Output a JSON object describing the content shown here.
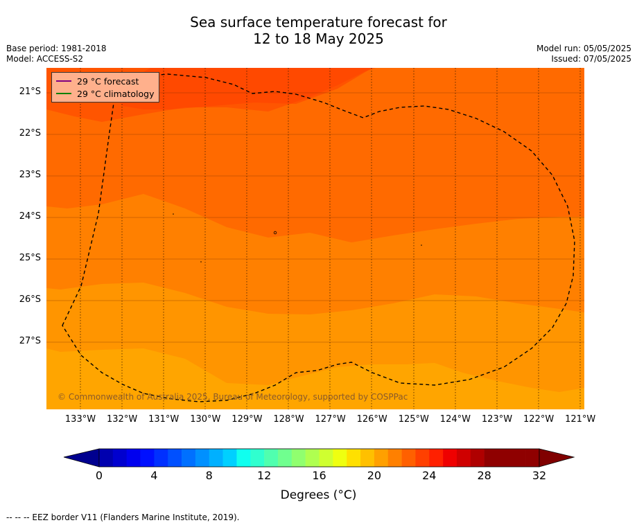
{
  "title": {
    "line1": "Sea surface temperature forecast for",
    "line2": "12 to 18 May 2025"
  },
  "meta": {
    "base_period": "Base period: 1981-2018",
    "model": "Model: ACCESS-S2",
    "model_run": "Model run: 05/05/2025",
    "issued": "Issued: 07/05/2025"
  },
  "legend": {
    "forecast": "29 °C  forecast",
    "climatology": "29 °C  climatology",
    "forecast_color": "#800080",
    "climatology_color": "#008000"
  },
  "map": {
    "lat_labels": [
      "21°S",
      "22°S",
      "23°S",
      "24°S",
      "25°S",
      "26°S",
      "27°S"
    ],
    "lon_labels": [
      "133°W",
      "132°W",
      "131°W",
      "130°W",
      "129°W",
      "128°W",
      "127°W",
      "126°W",
      "125°W",
      "124°W",
      "123°W",
      "122°W",
      "121°W"
    ],
    "copyright": "© Commonwealth of Australia 2025, Bureau of Meteorology, supported by COSPPac"
  },
  "colorbar": {
    "ticks": [
      "0",
      "4",
      "8",
      "12",
      "16",
      "20",
      "24",
      "28",
      "32"
    ],
    "label": "Degrees (°C)",
    "colors": [
      "#00008f",
      "#0000af",
      "#0000cf",
      "#0000ef",
      "#0010ff",
      "#0030ff",
      "#0050ff",
      "#0070ff",
      "#0090ff",
      "#00b0ff",
      "#00d0ff",
      "#10ffef",
      "#30ffcf",
      "#50ffaf",
      "#70ff8f",
      "#90ff6f",
      "#afff50",
      "#cfff30",
      "#efff10",
      "#ffe000",
      "#ffc000",
      "#ffa000",
      "#ff8000",
      "#ff6000",
      "#ff4000",
      "#ff2000",
      "#ef0000",
      "#cf0000",
      "#af0000",
      "#8f0000",
      "#800000"
    ]
  },
  "footer": "--  --  -- EEZ border V11 (Flanders Marine Institute, 2019)."
}
